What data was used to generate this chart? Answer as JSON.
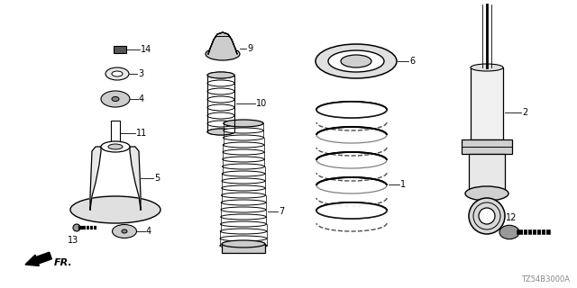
{
  "background_color": "#ffffff",
  "part_code": "TZ54B3000A",
  "line_color": "#000000",
  "gray_light": "#cccccc",
  "gray_med": "#999999",
  "gray_dark": "#555555"
}
